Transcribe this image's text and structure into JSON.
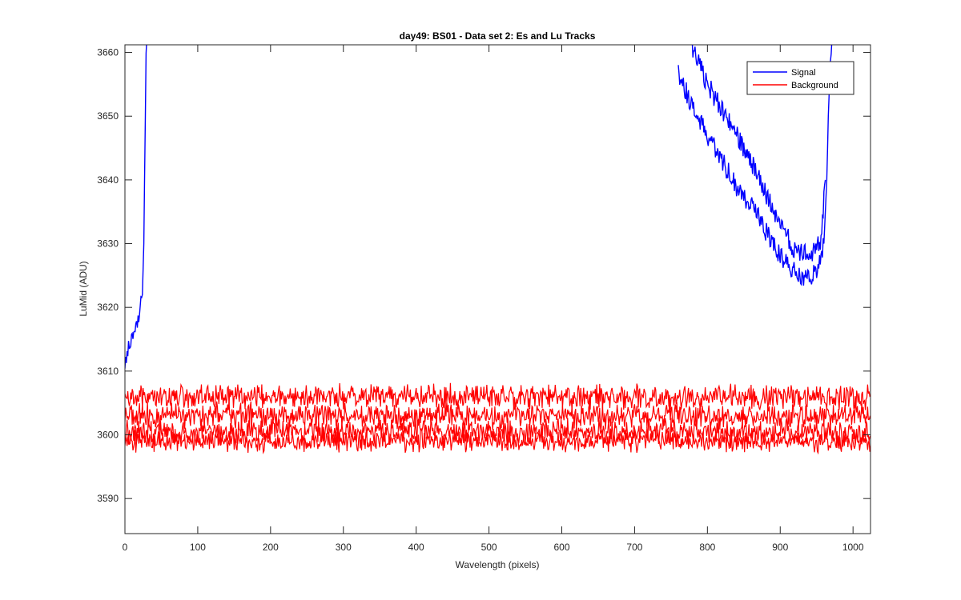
{
  "chart_data": {
    "type": "line",
    "title": "day49: BS01 - Data set 2: Es and Lu Tracks",
    "xlabel": "Wavelength (pixels)",
    "ylabel": "LuMid (ADU)",
    "xlim": [
      0,
      1024
    ],
    "ylim": [
      3584.5,
      3661.2
    ],
    "xticks": [
      0,
      100,
      200,
      300,
      400,
      500,
      600,
      700,
      800,
      900,
      1000
    ],
    "yticks": [
      3590,
      3600,
      3610,
      3620,
      3630,
      3640,
      3650,
      3660
    ],
    "grid": false,
    "legend_position": "top-right",
    "legend": [
      "Signal",
      "Background"
    ],
    "colors": {
      "Signal": "#0000ff",
      "Background": "#ff0000"
    },
    "series": [
      {
        "name": "Signal",
        "color": "#0000ff",
        "segments": [
          {
            "x": [
              0,
              5,
              10,
              15,
              20,
              24,
              26,
              27,
              28,
              29,
              30
            ],
            "y": [
              3612,
              3614,
              3615,
              3616,
              3619,
              3622,
              3630,
              3640,
              3650,
              3660,
              3662
            ]
          },
          {
            "x": [
              760,
              780,
              800,
              820,
              840,
              860,
              880,
              900,
              915,
              930,
              945,
              955,
              960,
              964,
              966,
              968,
              970,
              972
            ],
            "y": [
              3657,
              3651,
              3647,
              3643,
              3639,
              3636,
              3632,
              3628,
              3626,
              3625,
              3625,
              3627,
              3630,
              3640,
              3650,
              3656,
              3660,
              3662
            ]
          },
          {
            "x": [
              775,
              800,
              820,
              840,
              860,
              880,
              900,
              920,
              940,
              955,
              962
            ],
            "y": [
              3662,
              3655,
              3651,
              3647,
              3643,
              3638,
              3633,
              3629,
              3628,
              3630,
              3640
            ]
          }
        ]
      },
      {
        "name": "Background",
        "color": "#ff0000",
        "tracks": [
          {
            "x_range": [
              0,
              1024
            ],
            "mean": 3606,
            "amplitude": 1.4
          },
          {
            "x_range": [
              0,
              1024
            ],
            "mean": 3603,
            "amplitude": 1.5
          },
          {
            "x_range": [
              0,
              1024
            ],
            "mean": 3600.5,
            "amplitude": 1.5
          },
          {
            "x_range": [
              0,
              1024
            ],
            "mean": 3599,
            "amplitude": 1.2
          }
        ]
      }
    ]
  }
}
